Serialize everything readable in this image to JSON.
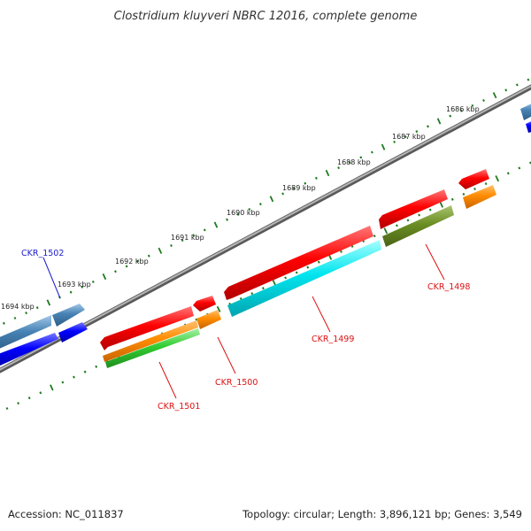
{
  "title": "Clostridium kluyveri NBRC 12016, complete genome",
  "footer": {
    "accession": "Accession: NC_011837",
    "summary": "Topology: circular; Length: 3,896,121 bp; Genes: 3,549"
  },
  "colors": {
    "dots": "#1f7a1f",
    "backbone": "#8a8a8a",
    "label_forward": "#1a1acc",
    "label_reverse": "#dd1111"
  },
  "ticks": [
    {
      "label": "1686 kbp"
    },
    {
      "label": "1687 kbp"
    },
    {
      "label": "1688 kbp"
    },
    {
      "label": "1689 kbp"
    },
    {
      "label": "1690 kbp"
    },
    {
      "label": "1691 kbp"
    },
    {
      "label": "1692 kbp"
    },
    {
      "label": "1693 kbp"
    },
    {
      "label": "1694 kbp"
    }
  ],
  "genes": [
    {
      "id": "CKR_1498",
      "label": "CKR_1498",
      "strand": "-",
      "color": "#dd1111"
    },
    {
      "id": "CKR_1499",
      "label": "CKR_1499",
      "strand": "-",
      "color": "#dd1111"
    },
    {
      "id": "CKR_1500",
      "label": "CKR_1500",
      "strand": "-",
      "color": "#dd1111"
    },
    {
      "id": "CKR_1501",
      "label": "CKR_1501",
      "strand": "-",
      "color": "#dd1111"
    },
    {
      "id": "CKR_1502",
      "label": "CKR_1502",
      "strand": "+",
      "color": "#1a1acc"
    }
  ],
  "feature_colors": [
    "#ff0000",
    "#00e5ee",
    "#ff8c00",
    "#32cd32",
    "#6b8e23",
    "#0000ff",
    "#4682b4"
  ]
}
